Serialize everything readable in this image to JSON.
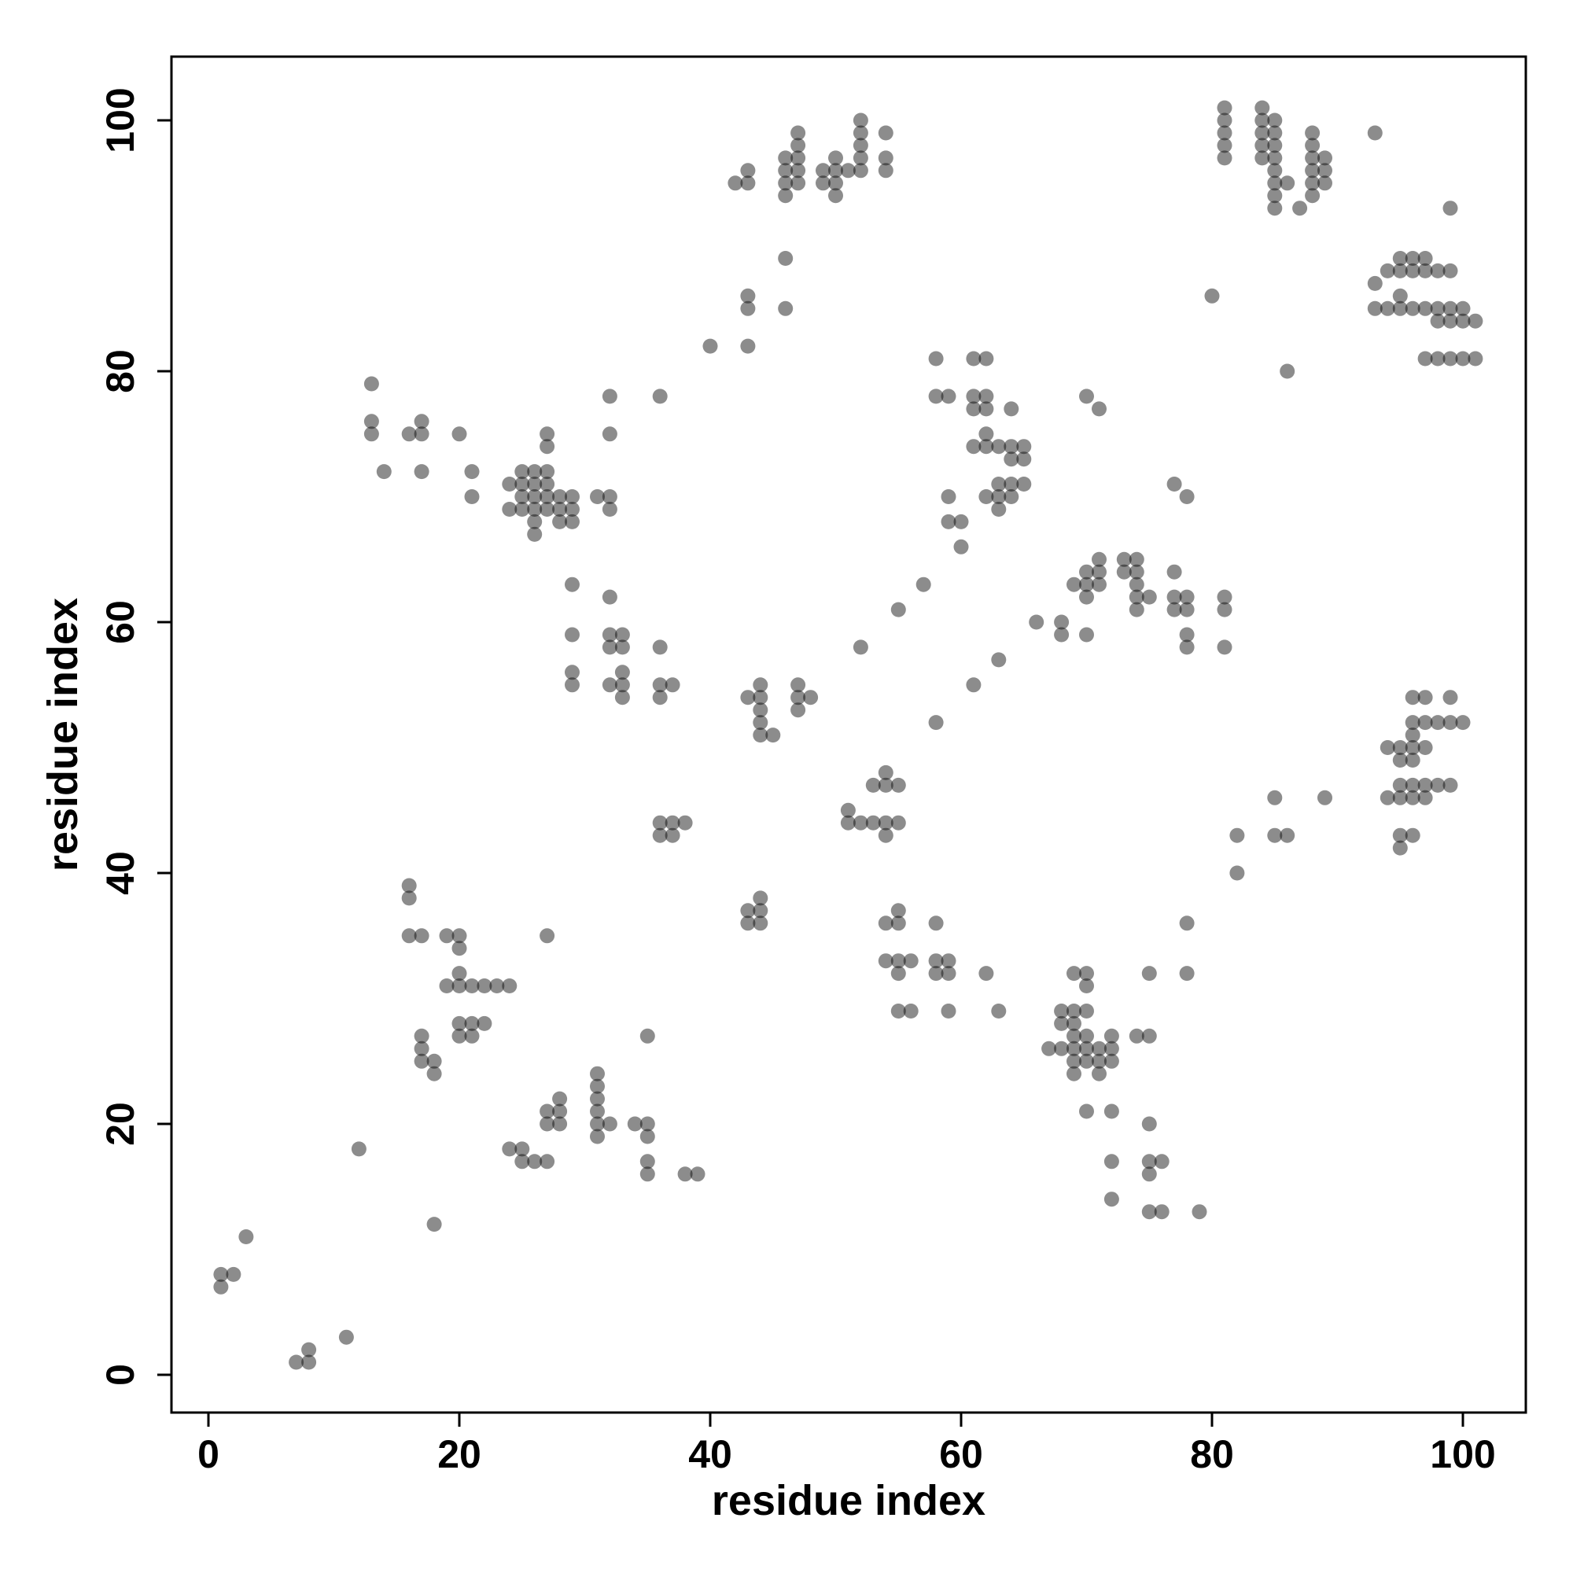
{
  "chart_data": {
    "type": "scatter",
    "title": "",
    "xlabel": "residue index",
    "ylabel": "residue index",
    "xlim": [
      -3,
      105
    ],
    "ylim": [
      -3,
      105
    ],
    "xticks": [
      0,
      20,
      40,
      60,
      80,
      100
    ],
    "yticks": [
      0,
      20,
      40,
      60,
      80,
      100
    ],
    "grid": false,
    "legend": "none",
    "point_color": "#000000",
    "point_alpha": 0.45,
    "points": [
      [
        1,
        7
      ],
      [
        1,
        8
      ],
      [
        2,
        8
      ],
      [
        3,
        11
      ],
      [
        7,
        1
      ],
      [
        8,
        1
      ],
      [
        8,
        2
      ],
      [
        11,
        3
      ],
      [
        12,
        18
      ],
      [
        18,
        12
      ],
      [
        13,
        79
      ],
      [
        13,
        76
      ],
      [
        13,
        75
      ],
      [
        14,
        72
      ],
      [
        16,
        75
      ],
      [
        17,
        76
      ],
      [
        17,
        75
      ],
      [
        17,
        72
      ],
      [
        20,
        75
      ],
      [
        21,
        72
      ],
      [
        21,
        70
      ],
      [
        24,
        71
      ],
      [
        24,
        69
      ],
      [
        25,
        72
      ],
      [
        25,
        71
      ],
      [
        25,
        70
      ],
      [
        25,
        69
      ],
      [
        26,
        72
      ],
      [
        26,
        71
      ],
      [
        26,
        70
      ],
      [
        26,
        69
      ],
      [
        26,
        68
      ],
      [
        26,
        67
      ],
      [
        27,
        75
      ],
      [
        27,
        74
      ],
      [
        27,
        72
      ],
      [
        27,
        71
      ],
      [
        27,
        70
      ],
      [
        27,
        69
      ],
      [
        28,
        70
      ],
      [
        28,
        69
      ],
      [
        28,
        68
      ],
      [
        29,
        70
      ],
      [
        29,
        69
      ],
      [
        29,
        68
      ],
      [
        31,
        70
      ],
      [
        32,
        70
      ],
      [
        32,
        69
      ],
      [
        32,
        78
      ],
      [
        32,
        75
      ],
      [
        36,
        78
      ],
      [
        29,
        63
      ],
      [
        29,
        59
      ],
      [
        29,
        56
      ],
      [
        29,
        55
      ],
      [
        32,
        62
      ],
      [
        32,
        59
      ],
      [
        32,
        58
      ],
      [
        32,
        55
      ],
      [
        33,
        59
      ],
      [
        33,
        58
      ],
      [
        33,
        56
      ],
      [
        33,
        55
      ],
      [
        33,
        54
      ],
      [
        36,
        58
      ],
      [
        36,
        55
      ],
      [
        36,
        54
      ],
      [
        37,
        55
      ],
      [
        36,
        44
      ],
      [
        36,
        43
      ],
      [
        37,
        44
      ],
      [
        37,
        43
      ],
      [
        38,
        44
      ],
      [
        40,
        82
      ],
      [
        42,
        95
      ],
      [
        43,
        96
      ],
      [
        43,
        95
      ],
      [
        43,
        86
      ],
      [
        43,
        85
      ],
      [
        43,
        82
      ],
      [
        46,
        97
      ],
      [
        46,
        96
      ],
      [
        46,
        95
      ],
      [
        46,
        94
      ],
      [
        46,
        89
      ],
      [
        46,
        85
      ],
      [
        47,
        99
      ],
      [
        47,
        98
      ],
      [
        47,
        97
      ],
      [
        47,
        96
      ],
      [
        47,
        95
      ],
      [
        49,
        96
      ],
      [
        49,
        95
      ],
      [
        50,
        97
      ],
      [
        50,
        96
      ],
      [
        50,
        95
      ],
      [
        50,
        94
      ],
      [
        51,
        96
      ],
      [
        52,
        100
      ],
      [
        52,
        99
      ],
      [
        52,
        98
      ],
      [
        52,
        97
      ],
      [
        52,
        96
      ],
      [
        54,
        99
      ],
      [
        54,
        97
      ],
      [
        54,
        96
      ],
      [
        43,
        54
      ],
      [
        44,
        55
      ],
      [
        44,
        54
      ],
      [
        44,
        53
      ],
      [
        44,
        52
      ],
      [
        44,
        51
      ],
      [
        45,
        51
      ],
      [
        47,
        55
      ],
      [
        47,
        54
      ],
      [
        47,
        53
      ],
      [
        48,
        54
      ],
      [
        43,
        37
      ],
      [
        43,
        36
      ],
      [
        44,
        38
      ],
      [
        44,
        37
      ],
      [
        44,
        36
      ],
      [
        51,
        45
      ],
      [
        51,
        44
      ],
      [
        52,
        44
      ],
      [
        52,
        58
      ],
      [
        53,
        44
      ],
      [
        53,
        47
      ],
      [
        54,
        48
      ],
      [
        54,
        47
      ],
      [
        54,
        44
      ],
      [
        54,
        43
      ],
      [
        55,
        47
      ],
      [
        55,
        44
      ],
      [
        54,
        36
      ],
      [
        54,
        33
      ],
      [
        55,
        37
      ],
      [
        55,
        36
      ],
      [
        55,
        33
      ],
      [
        55,
        32
      ],
      [
        55,
        29
      ],
      [
        56,
        33
      ],
      [
        56,
        29
      ],
      [
        58,
        36
      ],
      [
        58,
        33
      ],
      [
        58,
        32
      ],
      [
        59,
        33
      ],
      [
        59,
        32
      ],
      [
        59,
        29
      ],
      [
        62,
        32
      ],
      [
        63,
        29
      ],
      [
        57,
        63
      ],
      [
        55,
        61
      ],
      [
        58,
        52
      ],
      [
        61,
        55
      ],
      [
        63,
        57
      ],
      [
        66,
        60
      ],
      [
        58,
        81
      ],
      [
        58,
        78
      ],
      [
        59,
        78
      ],
      [
        59,
        70
      ],
      [
        59,
        68
      ],
      [
        60,
        68
      ],
      [
        60,
        66
      ],
      [
        61,
        81
      ],
      [
        61,
        78
      ],
      [
        61,
        77
      ],
      [
        61,
        74
      ],
      [
        62,
        81
      ],
      [
        62,
        78
      ],
      [
        62,
        77
      ],
      [
        62,
        75
      ],
      [
        62,
        74
      ],
      [
        62,
        70
      ],
      [
        63,
        74
      ],
      [
        63,
        71
      ],
      [
        63,
        70
      ],
      [
        63,
        69
      ],
      [
        64,
        77
      ],
      [
        64,
        74
      ],
      [
        64,
        73
      ],
      [
        64,
        71
      ],
      [
        64,
        70
      ],
      [
        65,
        74
      ],
      [
        65,
        73
      ],
      [
        65,
        71
      ],
      [
        68,
        60
      ],
      [
        68,
        59
      ],
      [
        69,
        63
      ],
      [
        70,
        64
      ],
      [
        70,
        63
      ],
      [
        70,
        62
      ],
      [
        70,
        59
      ],
      [
        71,
        65
      ],
      [
        71,
        64
      ],
      [
        71,
        63
      ],
      [
        70,
        78
      ],
      [
        71,
        77
      ],
      [
        73,
        65
      ],
      [
        73,
        64
      ],
      [
        74,
        65
      ],
      [
        74,
        64
      ],
      [
        74,
        63
      ],
      [
        74,
        62
      ],
      [
        74,
        61
      ],
      [
        75,
        62
      ],
      [
        77,
        71
      ],
      [
        77,
        64
      ],
      [
        77,
        62
      ],
      [
        77,
        61
      ],
      [
        78,
        70
      ],
      [
        78,
        62
      ],
      [
        78,
        61
      ],
      [
        78,
        59
      ],
      [
        78,
        58
      ],
      [
        81,
        62
      ],
      [
        81,
        61
      ],
      [
        81,
        58
      ],
      [
        80,
        86
      ],
      [
        67,
        26
      ],
      [
        68,
        29
      ],
      [
        68,
        28
      ],
      [
        68,
        26
      ],
      [
        69,
        32
      ],
      [
        69,
        29
      ],
      [
        69,
        28
      ],
      [
        69,
        27
      ],
      [
        69,
        26
      ],
      [
        69,
        25
      ],
      [
        69,
        24
      ],
      [
        70,
        32
      ],
      [
        70,
        31
      ],
      [
        70,
        29
      ],
      [
        70,
        27
      ],
      [
        70,
        26
      ],
      [
        70,
        25
      ],
      [
        70,
        21
      ],
      [
        71,
        26
      ],
      [
        71,
        25
      ],
      [
        71,
        24
      ],
      [
        72,
        27
      ],
      [
        72,
        26
      ],
      [
        72,
        25
      ],
      [
        72,
        21
      ],
      [
        72,
        17
      ],
      [
        72,
        14
      ],
      [
        74,
        27
      ],
      [
        75,
        27
      ],
      [
        75,
        32
      ],
      [
        75,
        20
      ],
      [
        75,
        17
      ],
      [
        75,
        16
      ],
      [
        75,
        13
      ],
      [
        76,
        17
      ],
      [
        76,
        13
      ],
      [
        78,
        36
      ],
      [
        78,
        32
      ],
      [
        79,
        13
      ],
      [
        16,
        39
      ],
      [
        16,
        38
      ],
      [
        16,
        35
      ],
      [
        17,
        35
      ],
      [
        17,
        27
      ],
      [
        17,
        26
      ],
      [
        17,
        25
      ],
      [
        18,
        25
      ],
      [
        18,
        24
      ],
      [
        19,
        35
      ],
      [
        19,
        31
      ],
      [
        20,
        35
      ],
      [
        20,
        34
      ],
      [
        20,
        32
      ],
      [
        20,
        31
      ],
      [
        20,
        28
      ],
      [
        20,
        27
      ],
      [
        21,
        31
      ],
      [
        21,
        28
      ],
      [
        21,
        27
      ],
      [
        22,
        31
      ],
      [
        22,
        28
      ],
      [
        23,
        31
      ],
      [
        24,
        31
      ],
      [
        27,
        35
      ],
      [
        24,
        18
      ],
      [
        25,
        18
      ],
      [
        25,
        17
      ],
      [
        26,
        17
      ],
      [
        27,
        21
      ],
      [
        27,
        20
      ],
      [
        27,
        17
      ],
      [
        28,
        22
      ],
      [
        28,
        21
      ],
      [
        28,
        20
      ],
      [
        31,
        24
      ],
      [
        31,
        23
      ],
      [
        31,
        22
      ],
      [
        31,
        21
      ],
      [
        31,
        20
      ],
      [
        31,
        19
      ],
      [
        32,
        20
      ],
      [
        34,
        20
      ],
      [
        35,
        27
      ],
      [
        35,
        20
      ],
      [
        35,
        19
      ],
      [
        35,
        17
      ],
      [
        35,
        16
      ],
      [
        38,
        16
      ],
      [
        39,
        16
      ],
      [
        81,
        101
      ],
      [
        81,
        100
      ],
      [
        81,
        99
      ],
      [
        81,
        98
      ],
      [
        81,
        97
      ],
      [
        84,
        101
      ],
      [
        84,
        100
      ],
      [
        84,
        99
      ],
      [
        84,
        98
      ],
      [
        84,
        97
      ],
      [
        85,
        100
      ],
      [
        85,
        99
      ],
      [
        85,
        98
      ],
      [
        85,
        97
      ],
      [
        85,
        96
      ],
      [
        85,
        95
      ],
      [
        85,
        94
      ],
      [
        85,
        93
      ],
      [
        86,
        95
      ],
      [
        87,
        93
      ],
      [
        88,
        99
      ],
      [
        88,
        98
      ],
      [
        88,
        97
      ],
      [
        88,
        96
      ],
      [
        88,
        95
      ],
      [
        88,
        94
      ],
      [
        89,
        97
      ],
      [
        89,
        96
      ],
      [
        89,
        95
      ],
      [
        93,
        99
      ],
      [
        99,
        93
      ],
      [
        86,
        80
      ],
      [
        93,
        87
      ],
      [
        93,
        85
      ],
      [
        94,
        88
      ],
      [
        94,
        85
      ],
      [
        95,
        89
      ],
      [
        95,
        88
      ],
      [
        95,
        86
      ],
      [
        95,
        85
      ],
      [
        96,
        89
      ],
      [
        96,
        88
      ],
      [
        96,
        85
      ],
      [
        97,
        89
      ],
      [
        97,
        88
      ],
      [
        97,
        85
      ],
      [
        98,
        88
      ],
      [
        98,
        85
      ],
      [
        98,
        84
      ],
      [
        99,
        88
      ],
      [
        99,
        85
      ],
      [
        99,
        84
      ],
      [
        100,
        85
      ],
      [
        100,
        84
      ],
      [
        101,
        84
      ],
      [
        97,
        81
      ],
      [
        98,
        81
      ],
      [
        99,
        81
      ],
      [
        100,
        81
      ],
      [
        101,
        81
      ],
      [
        82,
        43
      ],
      [
        82,
        40
      ],
      [
        85,
        46
      ],
      [
        85,
        43
      ],
      [
        86,
        43
      ],
      [
        89,
        46
      ],
      [
        94,
        50
      ],
      [
        94,
        46
      ],
      [
        95,
        50
      ],
      [
        95,
        49
      ],
      [
        95,
        47
      ],
      [
        95,
        46
      ],
      [
        95,
        43
      ],
      [
        95,
        42
      ],
      [
        96,
        54
      ],
      [
        96,
        52
      ],
      [
        96,
        51
      ],
      [
        96,
        50
      ],
      [
        96,
        49
      ],
      [
        96,
        47
      ],
      [
        96,
        46
      ],
      [
        96,
        43
      ],
      [
        97,
        54
      ],
      [
        97,
        52
      ],
      [
        97,
        50
      ],
      [
        97,
        47
      ],
      [
        97,
        46
      ],
      [
        98,
        52
      ],
      [
        98,
        47
      ],
      [
        99,
        54
      ],
      [
        99,
        52
      ],
      [
        99,
        47
      ],
      [
        100,
        52
      ]
    ]
  }
}
